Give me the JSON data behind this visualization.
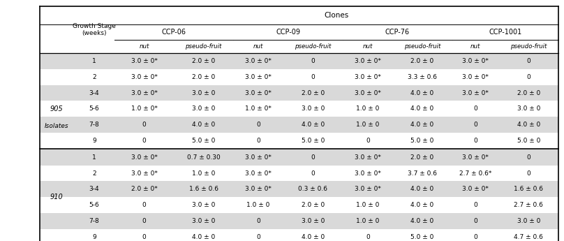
{
  "title": "Clones",
  "col_headers_l1": [
    "",
    "Growth Stage\n(weeks)",
    "CCP-06",
    "",
    "CCP-09",
    "",
    "CCP-76",
    "",
    "CCP-1001",
    ""
  ],
  "col_headers_l2": [
    "",
    "",
    "nut",
    "pseudo-fruit",
    "nut",
    "pseudo-fruit",
    "nut",
    "pseudo-fruit",
    "nut",
    "pseudo-fruit"
  ],
  "isolate_905_rows": [
    [
      "1",
      "3.0 ± 0*",
      "2.0 ± 0",
      "3.0 ± 0*",
      "0",
      "3.0 ± 0*",
      "2.0 ± 0",
      "3.0 ± 0*",
      "0"
    ],
    [
      "2",
      "3.0 ± 0*",
      "2.0 ± 0",
      "3.0 ± 0*",
      "0",
      "3.0 ± 0*",
      "3.3 ± 0.6",
      "3.0 ± 0*",
      "0"
    ],
    [
      "3-4",
      "3.0 ± 0*",
      "3.0 ± 0",
      "3.0 ± 0*",
      "2.0 ± 0",
      "3.0 ± 0*",
      "4.0 ± 0",
      "3.0 ± 0*",
      "2.0 ± 0"
    ],
    [
      "5-6",
      "1.0 ± 0*",
      "3.0 ± 0",
      "1.0 ± 0*",
      "3.0 ± 0",
      "1.0 ± 0",
      "4.0 ± 0",
      "0",
      "3.0 ± 0"
    ],
    [
      "7-8",
      "0",
      "4.0 ± 0",
      "0",
      "4.0 ± 0",
      "1.0 ± 0",
      "4.0 ± 0",
      "0",
      "4.0 ± 0"
    ],
    [
      "9",
      "0",
      "5.0 ± 0",
      "0",
      "5.0 ± 0",
      "0",
      "5.0 ± 0",
      "0",
      "5.0 ± 0"
    ]
  ],
  "isolate_910_rows": [
    [
      "1",
      "3.0 ± 0*",
      "0.7 ± 0.30",
      "3.0 ± 0*",
      "0",
      "3.0 ± 0*",
      "2.0 ± 0",
      "3.0 ± 0*",
      "0"
    ],
    [
      "2",
      "3.0 ± 0*",
      "1.0 ± 0",
      "3.0 ± 0*",
      "0",
      "3.0 ± 0*",
      "3.7 ± 0.6",
      "2.7 ± 0.6*",
      "0"
    ],
    [
      "3-4",
      "2.0 ± 0*",
      "1.6 ± 0.6",
      "3.0 ± 0*",
      "0.3 ± 0.6",
      "3.0 ± 0*",
      "4.0 ± 0",
      "3.0 ± 0*",
      "1.6 ± 0.6"
    ],
    [
      "5-6",
      "0",
      "3.0 ± 0",
      "1.0 ± 0",
      "2.0 ± 0",
      "1.0 ± 0",
      "4.0 ± 0",
      "0",
      "2.7 ± 0.6"
    ],
    [
      "7-8",
      "0",
      "3.0 ± 0",
      "0",
      "3.0 ± 0",
      "1.0 ± 0",
      "4.0 ± 0",
      "0",
      "3.0 ± 0"
    ],
    [
      "9",
      "0",
      "4.0 ± 0",
      "0",
      "4.0 ± 0",
      "0",
      "5.0 ± 0",
      "0",
      "4.7 ± 0.6"
    ]
  ],
  "isolate_labels": [
    "905",
    "910"
  ],
  "bg_color_odd": "#d9d9d9",
  "bg_color_even": "#ffffff",
  "header_bg": "#ffffff",
  "font_size": 6.5,
  "header_font_size": 7.0
}
